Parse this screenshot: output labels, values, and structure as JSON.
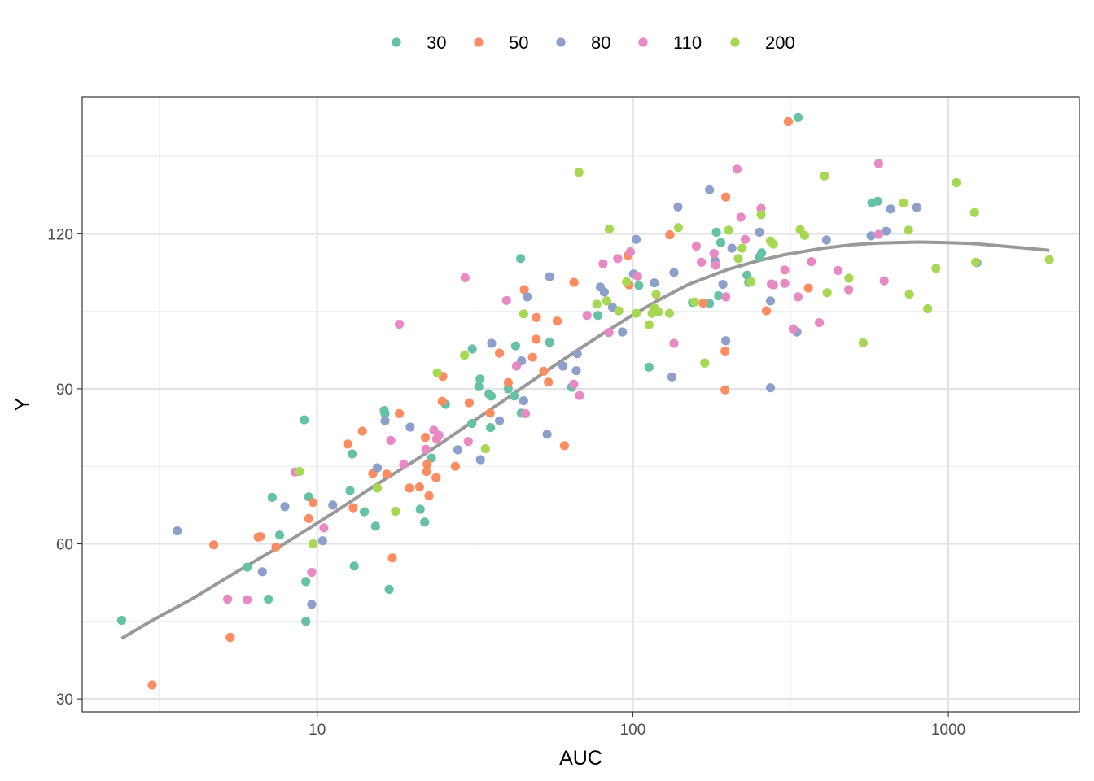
{
  "chart_data": {
    "type": "scatter",
    "xlabel": "AUC",
    "ylabel": "Y",
    "x_scale": "log10",
    "xlim": [
      1.8,
      2600
    ],
    "ylim": [
      27.5,
      146.5
    ],
    "x_ticks": [
      10,
      100,
      1000
    ],
    "x_tick_labels": [
      "10",
      "100",
      "1000"
    ],
    "x_minor_ticks": [
      3.16,
      31.6,
      316
    ],
    "y_ticks": [
      30,
      60,
      90,
      120
    ],
    "y_tick_labels": [
      "30",
      "60",
      "90",
      "120"
    ],
    "y_minor_ticks": [
      45,
      75,
      105,
      135
    ],
    "grid": true,
    "legend_position": "top",
    "series": [
      {
        "name": "30",
        "color": "#66C2A5",
        "points": [
          [
            2.4,
            45.2
          ],
          [
            6,
            55.5
          ],
          [
            7,
            49.3
          ],
          [
            7.2,
            69
          ],
          [
            7.6,
            61.7
          ],
          [
            9.1,
            84
          ],
          [
            9.2,
            52.7
          ],
          [
            9.2,
            45
          ],
          [
            9.4,
            69.1
          ],
          [
            12.7,
            70.3
          ],
          [
            12.9,
            77.4
          ],
          [
            13.1,
            55.7
          ],
          [
            14.1,
            66.2
          ],
          [
            15.3,
            63.4
          ],
          [
            16.3,
            85.8
          ],
          [
            16.4,
            85.2
          ],
          [
            16.9,
            51.2
          ],
          [
            21.2,
            66.7
          ],
          [
            21.9,
            64.2
          ],
          [
            23,
            76.6
          ],
          [
            25.5,
            87
          ],
          [
            30.9,
            83.3
          ],
          [
            31,
            97.7
          ],
          [
            32.5,
            90.4
          ],
          [
            32.8,
            91.9
          ],
          [
            35,
            89
          ],
          [
            35.4,
            82.5
          ],
          [
            35.6,
            88.6
          ],
          [
            40.3,
            90
          ],
          [
            42.1,
            88.6
          ],
          [
            42.5,
            98.3
          ],
          [
            44.1,
            115.2
          ],
          [
            44.3,
            85.3
          ],
          [
            54.5,
            99
          ],
          [
            64,
            90.3
          ],
          [
            77.5,
            104.2
          ],
          [
            104.5,
            110
          ],
          [
            112.5,
            94.2
          ],
          [
            154.5,
            106.7
          ],
          [
            175,
            106.5
          ],
          [
            184,
            120.3
          ],
          [
            187,
            108
          ],
          [
            190,
            118.3
          ],
          [
            230,
            112
          ],
          [
            233,
            110.6
          ],
          [
            252,
            115.5
          ],
          [
            256,
            116.3
          ],
          [
            334,
            142.5
          ],
          [
            572,
            126
          ],
          [
            597,
            126.3
          ]
        ]
      },
      {
        "name": "50",
        "color": "#FC8D62",
        "points": [
          [
            3,
            32.7
          ],
          [
            4.7,
            59.8
          ],
          [
            5.3,
            41.9
          ],
          [
            6.5,
            61.3
          ],
          [
            6.6,
            61.4
          ],
          [
            7.4,
            59.4
          ],
          [
            9.4,
            64.9
          ],
          [
            9.7,
            68
          ],
          [
            12.5,
            79.3
          ],
          [
            13,
            67
          ],
          [
            13.9,
            81.8
          ],
          [
            15,
            73.6
          ],
          [
            16.6,
            73.5
          ],
          [
            17.3,
            57.3
          ],
          [
            18.2,
            85.2
          ],
          [
            19.6,
            70.8
          ],
          [
            21.1,
            71
          ],
          [
            22,
            80.6
          ],
          [
            22.2,
            74
          ],
          [
            22.3,
            75.4
          ],
          [
            22.6,
            69.3
          ],
          [
            23.8,
            72.8
          ],
          [
            24.9,
            87.6
          ],
          [
            25,
            92.4
          ],
          [
            27.4,
            75
          ],
          [
            30.3,
            87.3
          ],
          [
            35.3,
            85.3
          ],
          [
            37.8,
            96.9
          ],
          [
            40.3,
            91.2
          ],
          [
            45.3,
            109.2
          ],
          [
            48.1,
            96.1
          ],
          [
            49.4,
            99.6
          ],
          [
            49.5,
            103.8
          ],
          [
            52.2,
            93.4
          ],
          [
            54,
            91.3
          ],
          [
            57.6,
            103.1
          ],
          [
            60.7,
            79
          ],
          [
            65.1,
            110.6
          ],
          [
            96.6,
            115.8
          ],
          [
            97.3,
            110.1
          ],
          [
            131,
            119.8
          ],
          [
            167,
            106.6
          ],
          [
            196,
            97.3
          ],
          [
            196,
            89.8
          ],
          [
            197,
            127.1
          ],
          [
            265,
            105.1
          ],
          [
            311,
            141.7
          ],
          [
            360,
            109.5
          ]
        ]
      },
      {
        "name": "80",
        "color": "#8DA0CB",
        "points": [
          [
            3.6,
            62.5
          ],
          [
            6.7,
            54.6
          ],
          [
            7.9,
            67.2
          ],
          [
            9.6,
            48.3
          ],
          [
            10.4,
            60.6
          ],
          [
            11.2,
            67.5
          ],
          [
            15.5,
            74.7
          ],
          [
            16.4,
            83.8
          ],
          [
            19.7,
            82.6
          ],
          [
            27.9,
            78.2
          ],
          [
            32.9,
            76.3
          ],
          [
            35.7,
            98.8
          ],
          [
            37.8,
            83.8
          ],
          [
            44.4,
            95.4
          ],
          [
            45.1,
            87.7
          ],
          [
            46.3,
            107.8
          ],
          [
            53.5,
            81.2
          ],
          [
            54.5,
            111.7
          ],
          [
            60.1,
            94.4
          ],
          [
            66.7,
            96.8
          ],
          [
            66.2,
            93.5
          ],
          [
            78.9,
            109.7
          ],
          [
            81.2,
            108.7
          ],
          [
            86.2,
            105.8
          ],
          [
            92.7,
            101
          ],
          [
            100.5,
            112.2
          ],
          [
            102.5,
            118.9
          ],
          [
            117,
            110.5
          ],
          [
            133,
            92.3
          ],
          [
            135,
            112.5
          ],
          [
            139,
            125.2
          ],
          [
            175,
            128.5
          ],
          [
            182,
            114.8
          ],
          [
            193,
            110.2
          ],
          [
            197,
            99.3
          ],
          [
            206,
            117.2
          ],
          [
            252,
            120.3
          ],
          [
            273,
            90.2
          ],
          [
            273,
            107
          ],
          [
            331,
            101
          ],
          [
            411,
            118.8
          ],
          [
            569,
            119.6
          ],
          [
            635,
            120.5
          ],
          [
            656,
            124.8
          ],
          [
            794,
            125.1
          ],
          [
            1232,
            114.4
          ]
        ]
      },
      {
        "name": "110",
        "color": "#E78AC3",
        "points": [
          [
            5.2,
            49.3
          ],
          [
            6,
            49.2
          ],
          [
            8.5,
            73.9
          ],
          [
            9.6,
            54.5
          ],
          [
            10.5,
            63.1
          ],
          [
            17.1,
            80
          ],
          [
            18.2,
            102.5
          ],
          [
            18.8,
            75.4
          ],
          [
            22.1,
            78.3
          ],
          [
            23.4,
            82
          ],
          [
            23.9,
            80.3
          ],
          [
            24.3,
            81
          ],
          [
            29.4,
            111.5
          ],
          [
            30.1,
            79.8
          ],
          [
            39.8,
            107.1
          ],
          [
            42.8,
            94.4
          ],
          [
            45.7,
            85.2
          ],
          [
            65,
            90.9
          ],
          [
            67.8,
            88.7
          ],
          [
            71.6,
            104.2
          ],
          [
            80.5,
            114.2
          ],
          [
            84,
            100.9
          ],
          [
            89.6,
            115.2
          ],
          [
            98.2,
            116.5
          ],
          [
            103.5,
            111.8
          ],
          [
            135,
            98.8
          ],
          [
            159,
            117.6
          ],
          [
            165,
            114.5
          ],
          [
            181,
            116.2
          ],
          [
            183,
            113.9
          ],
          [
            197,
            107.8
          ],
          [
            214,
            132.5
          ],
          [
            220,
            123.2
          ],
          [
            227,
            118.9
          ],
          [
            255,
            124.9
          ],
          [
            275,
            110.3
          ],
          [
            279,
            110.1
          ],
          [
            303,
            110.4
          ],
          [
            303,
            113
          ],
          [
            322,
            101.6
          ],
          [
            334,
            107.8
          ],
          [
            368,
            114.6
          ],
          [
            390,
            102.8
          ],
          [
            447,
            112.9
          ],
          [
            483,
            109.2
          ],
          [
            601,
            133.6
          ],
          [
            601,
            119.9
          ],
          [
            626,
            110.9
          ]
        ]
      },
      {
        "name": "200",
        "color": "#A6D854",
        "points": [
          [
            8.8,
            74
          ],
          [
            9.7,
            60
          ],
          [
            15.5,
            70.8
          ],
          [
            17.7,
            66.3
          ],
          [
            24,
            93.1
          ],
          [
            29.3,
            96.5
          ],
          [
            34.1,
            78.4
          ],
          [
            45.1,
            104.5
          ],
          [
            67.5,
            131.9
          ],
          [
            76.9,
            106.4
          ],
          [
            82.7,
            107
          ],
          [
            84.2,
            120.9
          ],
          [
            90.2,
            105.1
          ],
          [
            95.5,
            110.7
          ],
          [
            102.5,
            104.6
          ],
          [
            112.5,
            102.4
          ],
          [
            115.1,
            104.6
          ],
          [
            117.2,
            105.6
          ],
          [
            118.5,
            108.3
          ],
          [
            120.5,
            104.9
          ],
          [
            130.6,
            104.6
          ],
          [
            139.4,
            121.2
          ],
          [
            157,
            106.8
          ],
          [
            169,
            95
          ],
          [
            201,
            120.7
          ],
          [
            216,
            115.2
          ],
          [
            222,
            117.2
          ],
          [
            237,
            110.7
          ],
          [
            255,
            123.7
          ],
          [
            273,
            118.6
          ],
          [
            279,
            118
          ],
          [
            339,
            120.8
          ],
          [
            350,
            119.7
          ],
          [
            405,
            131.2
          ],
          [
            413,
            108.6
          ],
          [
            484,
            111.4
          ],
          [
            537,
            98.9
          ],
          [
            721,
            126
          ],
          [
            748,
            120.7
          ],
          [
            752,
            108.3
          ],
          [
            860,
            105.5
          ],
          [
            913,
            113.3
          ],
          [
            1060,
            129.9
          ],
          [
            1210,
            124.1
          ],
          [
            1220,
            114.5
          ],
          [
            2090,
            115
          ]
        ]
      }
    ],
    "smooth_curve": {
      "color": "#999999",
      "points": [
        [
          2.4,
          41.7
        ],
        [
          3,
          45.2
        ],
        [
          4,
          49.3
        ],
        [
          5,
          52.9
        ],
        [
          6,
          55.8
        ],
        [
          7,
          58.2
        ],
        [
          8,
          60.3
        ],
        [
          10,
          64
        ],
        [
          12,
          67.1
        ],
        [
          15,
          71
        ],
        [
          20,
          75.8
        ],
        [
          25,
          79.7
        ],
        [
          30,
          83
        ],
        [
          40,
          88.2
        ],
        [
          50,
          92.3
        ],
        [
          60,
          95.6
        ],
        [
          70,
          98.3
        ],
        [
          80,
          100.6
        ],
        [
          100,
          104.3
        ],
        [
          120,
          107.1
        ],
        [
          150,
          110.2
        ],
        [
          200,
          113.1
        ],
        [
          250,
          114.8
        ],
        [
          300,
          115.9
        ],
        [
          400,
          117.2
        ],
        [
          500,
          117.9
        ],
        [
          600,
          118.2
        ],
        [
          800,
          118.4
        ],
        [
          1000,
          118.3
        ],
        [
          1200,
          118.1
        ],
        [
          1500,
          117.6
        ],
        [
          2090,
          116.8
        ]
      ]
    }
  }
}
